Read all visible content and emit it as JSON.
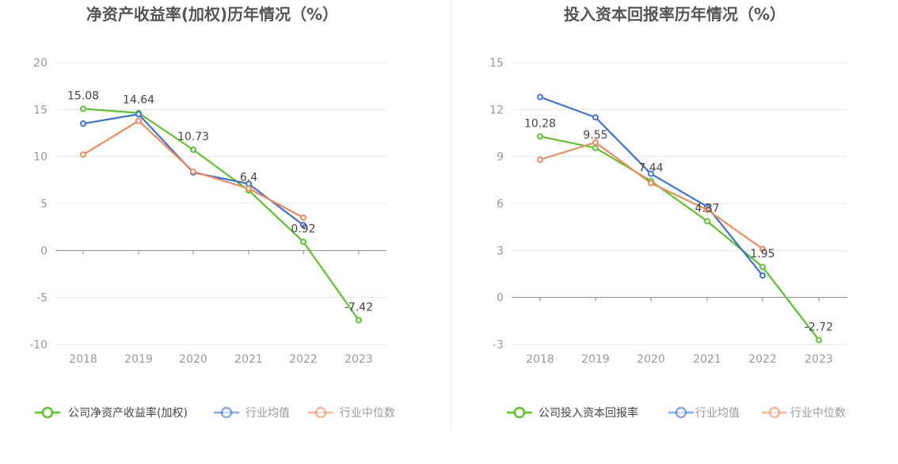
{
  "chart_data": [
    {
      "type": "line",
      "title": "净资产收益率(加权)历年情况（%）",
      "categories": [
        "2018",
        "2019",
        "2020",
        "2021",
        "2022",
        "2023"
      ],
      "yticks": [
        "20",
        "15",
        "10",
        "5",
        "0",
        "-5",
        "-10"
      ],
      "ylim": [
        -10,
        20
      ],
      "grid": true,
      "legend_position": "bottom-left",
      "series": [
        {
          "name": "公司净资产收益率(加权)",
          "color": "#5cc22d",
          "values": [
            15.08,
            14.64,
            10.73,
            6.4,
            0.92,
            -7.42
          ],
          "labels": [
            "15.08",
            "14.64",
            "10.73",
            "6.4",
            "0.92",
            "-7.42"
          ]
        },
        {
          "name": "行业均值",
          "color": "#3d73d6",
          "values": [
            13.5,
            14.5,
            8.3,
            7.1,
            2.7,
            null
          ]
        },
        {
          "name": "行业中位数",
          "color": "#ef8a5b",
          "values": [
            10.2,
            13.8,
            8.4,
            6.6,
            3.5,
            null
          ]
        }
      ]
    },
    {
      "type": "line",
      "title": "投入资本回报率历年情况（%）",
      "categories": [
        "2018",
        "2019",
        "2020",
        "2021",
        "2022",
        "2023"
      ],
      "yticks": [
        "15",
        "12",
        "9",
        "6",
        "3",
        "0",
        "-3"
      ],
      "ylim": [
        -3,
        15
      ],
      "grid": true,
      "legend_position": "bottom-left",
      "series": [
        {
          "name": "公司投入资本回报率",
          "color": "#5cc22d",
          "values": [
            10.28,
            9.55,
            7.44,
            4.87,
            1.95,
            -2.72
          ],
          "labels": [
            "10.28",
            "9.55",
            "7.44",
            "4.87",
            "1.95",
            "-2.72"
          ]
        },
        {
          "name": "行业均值",
          "color": "#3d73d6",
          "values": [
            12.8,
            11.5,
            7.9,
            5.8,
            1.4,
            null
          ]
        },
        {
          "name": "行业中位数",
          "color": "#ef8a5b",
          "values": [
            8.8,
            9.9,
            7.3,
            5.6,
            3.1,
            null
          ]
        }
      ]
    }
  ]
}
